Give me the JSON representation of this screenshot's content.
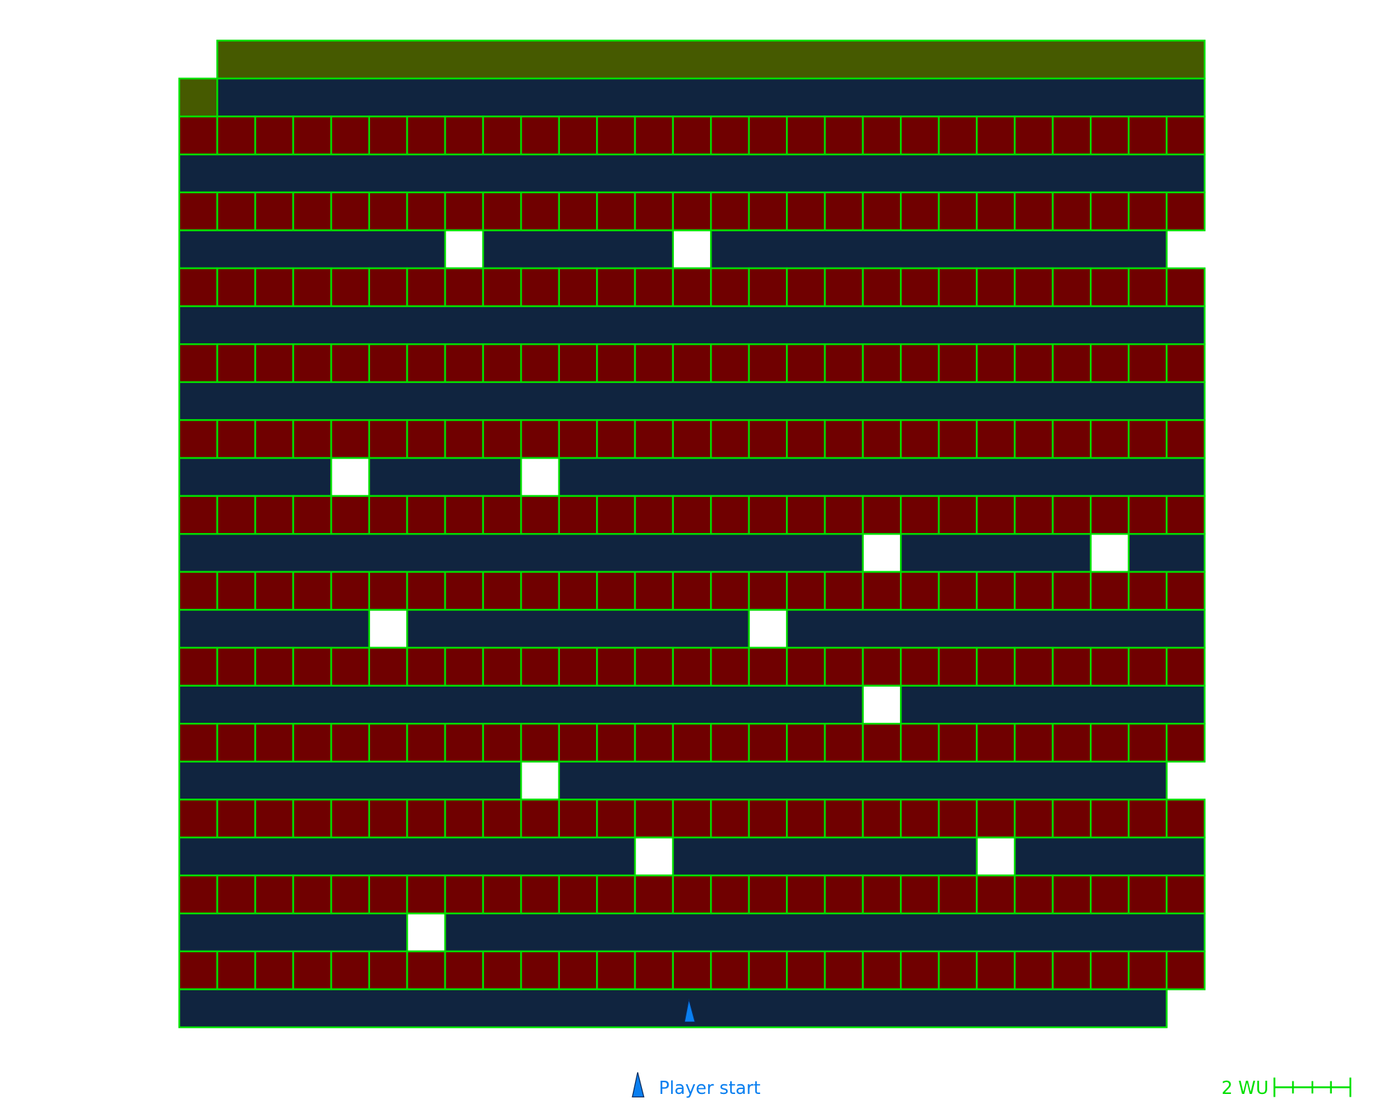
{
  "legend": {
    "player_start": "Player start",
    "scale": "2 WU"
  }
}
